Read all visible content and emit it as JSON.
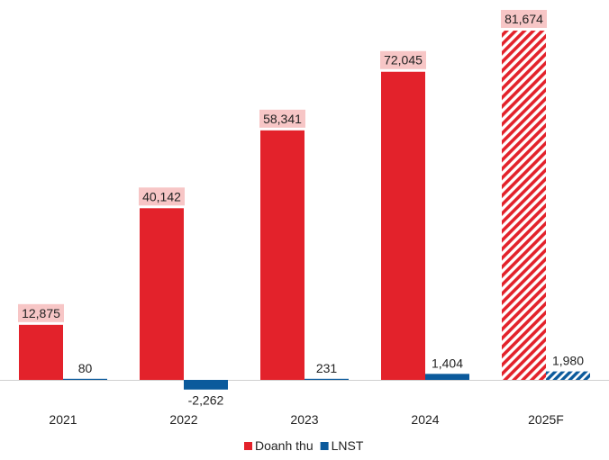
{
  "chart_data": {
    "type": "bar",
    "title": "",
    "xlabel": "",
    "ylabel": "",
    "categories": [
      "2021",
      "2022",
      "2023",
      "2024",
      "2025F"
    ],
    "forecast_categories": [
      "2025F"
    ],
    "series": [
      {
        "name": "Doanh thu",
        "color": "#e3222b",
        "values": [
          12875,
          40142,
          58341,
          72045,
          81674
        ],
        "labels": [
          "12,875",
          "40,142",
          "58,341",
          "72,045",
          "81,674"
        ]
      },
      {
        "name": "LNST",
        "color": "#0b5a9c",
        "values": [
          80,
          -2262,
          231,
          1404,
          1980
        ],
        "labels": [
          "80",
          "-2,262",
          "231",
          "1,404",
          "1,980"
        ]
      }
    ],
    "ylim": [
      -3200,
      84000
    ],
    "grid": false,
    "legend_position": "bottom",
    "label_bg_color": "#f7c6c6"
  }
}
